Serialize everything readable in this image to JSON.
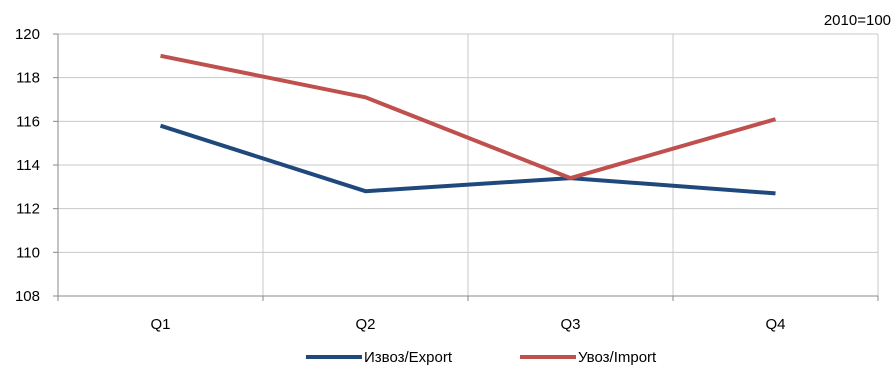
{
  "chart_data": {
    "type": "line",
    "title": "",
    "xlabel": "",
    "ylabel": "",
    "index_note": "2010=100",
    "categories": [
      "Q1",
      "Q2",
      "Q3",
      "Q4"
    ],
    "ylim": [
      108,
      120
    ],
    "yticks": [
      108,
      110,
      112,
      114,
      116,
      118,
      120
    ],
    "grid": true,
    "legend_position": "bottom",
    "series": [
      {
        "name": "Извоз/Export",
        "color": "#1f497d",
        "values": [
          115.8,
          112.8,
          113.4,
          112.7
        ]
      },
      {
        "name": "Увоз/Import",
        "color": "#c0504d",
        "values": [
          119.0,
          117.1,
          113.4,
          116.1
        ]
      }
    ]
  }
}
